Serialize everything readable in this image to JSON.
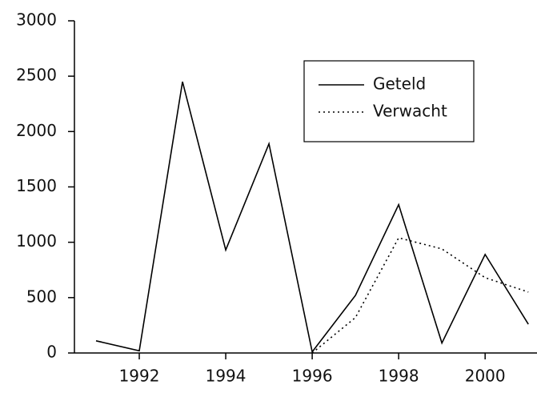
{
  "chart_data": {
    "type": "line",
    "x": [
      1991,
      1992,
      1993,
      1994,
      1995,
      1996,
      1997,
      1998,
      1999,
      2000,
      2001
    ],
    "series": [
      {
        "name": "Geteld",
        "color": "#000000",
        "style": "solid",
        "values": [
          110,
          20,
          2450,
          930,
          1890,
          10,
          520,
          1340,
          90,
          890,
          260
        ]
      },
      {
        "name": "Verwacht",
        "color": "#000000",
        "style": "dotted",
        "values": [
          null,
          null,
          null,
          null,
          null,
          0,
          320,
          1040,
          940,
          680,
          550
        ]
      }
    ],
    "xlim": [
      1990.5,
      2001.2
    ],
    "xticks": [
      1992,
      1994,
      1996,
      1998,
      2000
    ],
    "ylim": [
      0,
      3000
    ],
    "yticks": [
      0,
      500,
      1000,
      1500,
      2000,
      2500,
      3000
    ],
    "legend": "upper right"
  }
}
